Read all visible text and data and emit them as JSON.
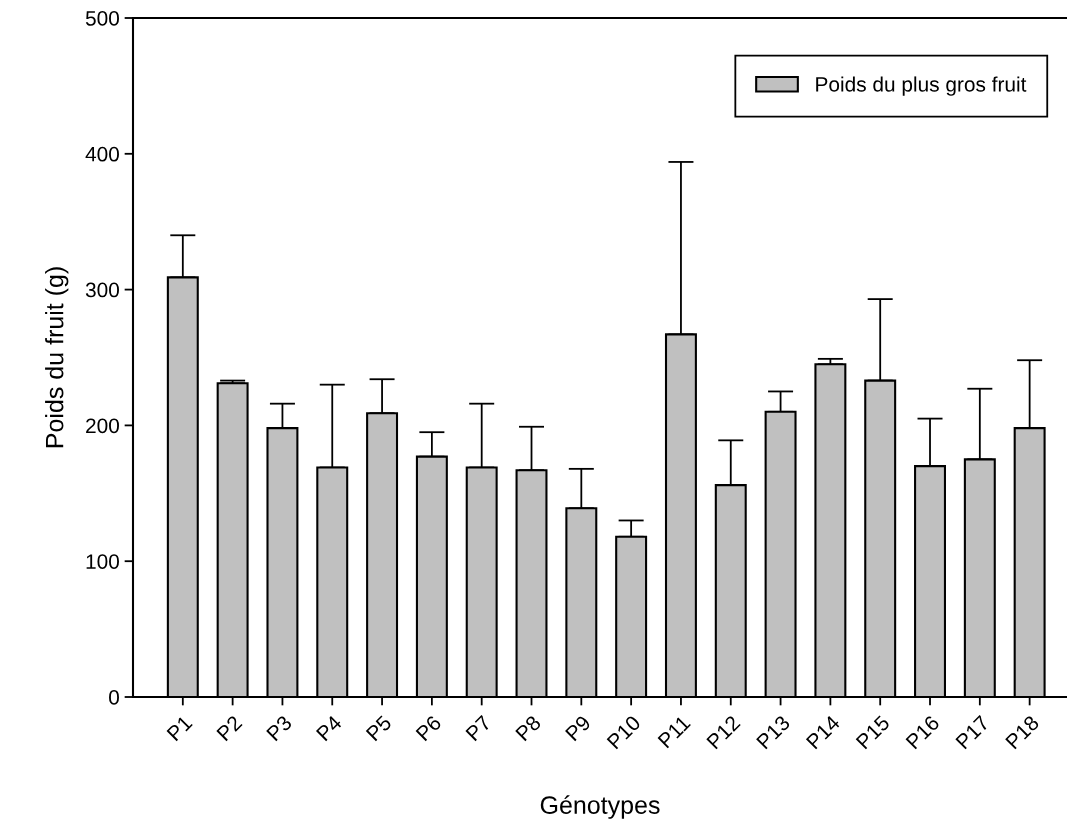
{
  "chart_data": {
    "type": "bar",
    "xlabel": "Génotypes",
    "ylabel": "Poids du fruit (g)",
    "categories": [
      "P1",
      "P2",
      "P3",
      "P4",
      "P5",
      "P6",
      "P7",
      "P8",
      "P9",
      "P10",
      "P11",
      "P12",
      "P13",
      "P14",
      "P15",
      "P16",
      "P17",
      "P18"
    ],
    "series": [
      {
        "name": "Poids du plus gros fruit",
        "color": "#c0c0c0",
        "values": [
          309,
          231,
          198,
          169,
          209,
          177,
          169,
          167,
          139,
          118,
          267,
          156,
          210,
          245,
          233,
          170,
          175,
          198
        ],
        "errors": [
          [
            309,
            340
          ],
          [
            231,
            233
          ],
          [
            198,
            216
          ],
          [
            169,
            230
          ],
          [
            209,
            234
          ],
          [
            177,
            195
          ],
          [
            169,
            216
          ],
          [
            167,
            199
          ],
          [
            139,
            168
          ],
          [
            118,
            130
          ],
          [
            267,
            394
          ],
          [
            156,
            189
          ],
          [
            210,
            225
          ],
          [
            245,
            249
          ],
          [
            233,
            293
          ],
          [
            170,
            205
          ],
          [
            175,
            227
          ],
          [
            198,
            248
          ]
        ]
      }
    ],
    "ylim": [
      0,
      500
    ],
    "yticks": [
      0,
      100,
      200,
      300,
      400,
      500
    ],
    "grid": false,
    "legend": "top right"
  }
}
